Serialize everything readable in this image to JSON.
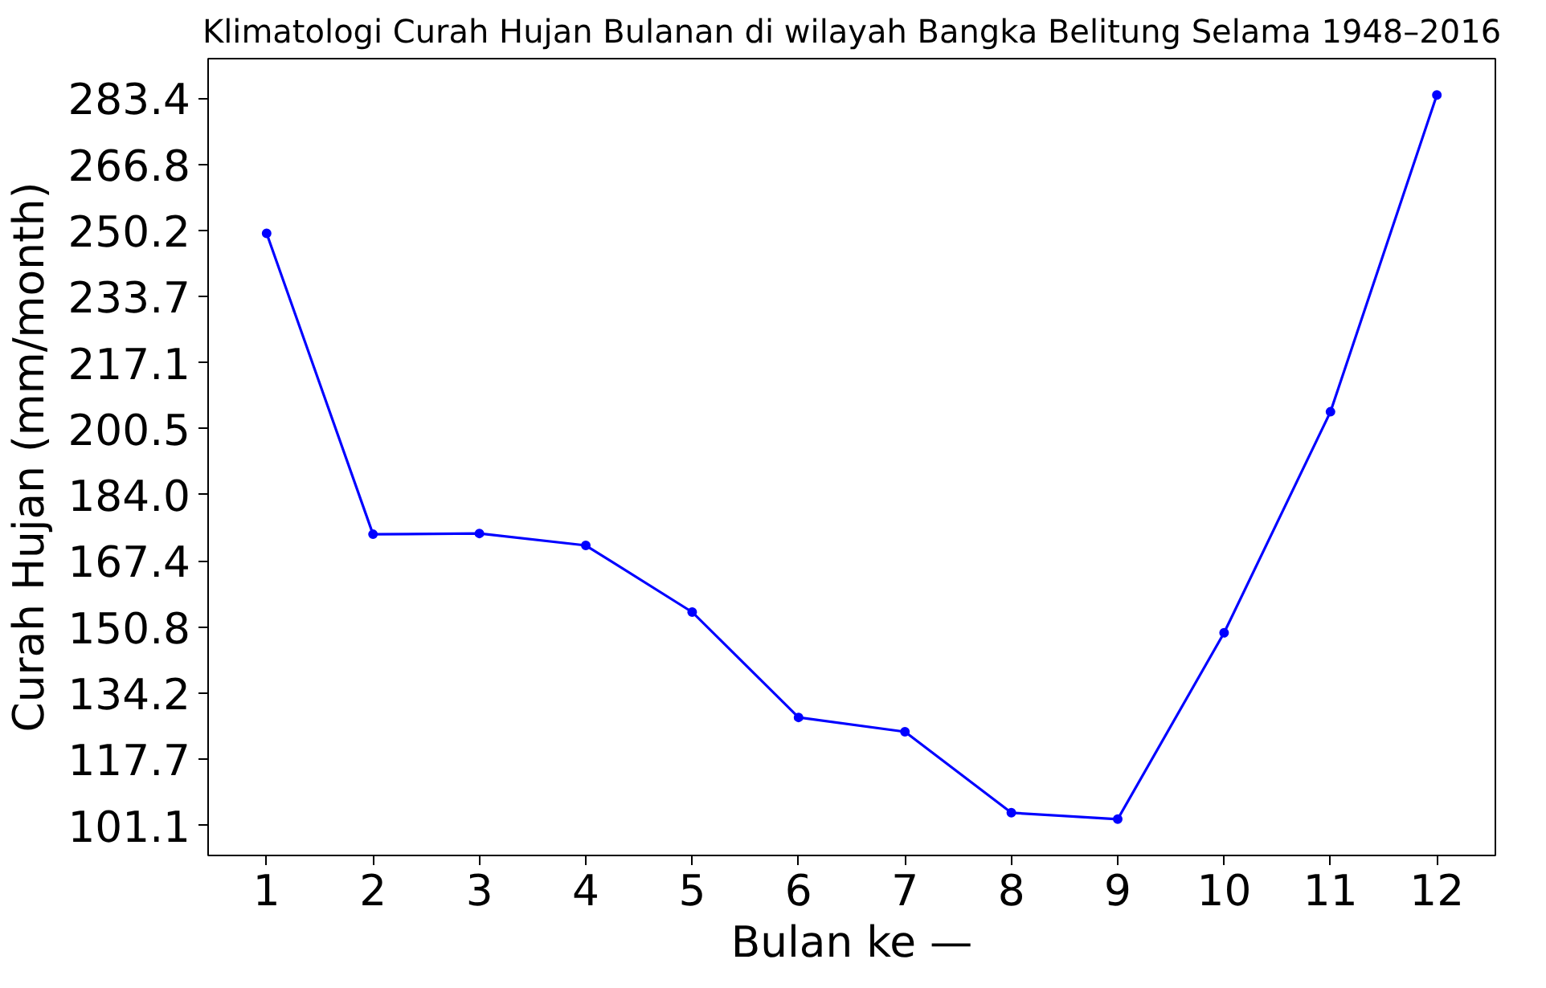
{
  "chart_data": {
    "type": "line",
    "title": "Klimatologi Curah Hujan Bulanan di wilayah Bangka Belitung Selama 1948–2016",
    "xlabel": "Bulan ke —",
    "ylabel": "Curah Hujan (mm/month)",
    "x": [
      1,
      2,
      3,
      4,
      5,
      6,
      7,
      8,
      9,
      10,
      11,
      12
    ],
    "series": [
      {
        "color": "#0000ff",
        "values": [
          249.5,
          174.1,
          174.3,
          171.3,
          154.6,
          128.2,
          124.6,
          104.3,
          102.7,
          149.4,
          204.8,
          284.2
        ]
      }
    ],
    "xlim": [
      0.45,
      12.55
    ],
    "ylim": [
      93.6,
      293.3
    ],
    "xticks": [
      1,
      2,
      3,
      4,
      5,
      6,
      7,
      8,
      9,
      10,
      11,
      12
    ],
    "yticks": [
      101.1,
      117.7,
      134.2,
      150.8,
      167.4,
      {
        "value": 184,
        "label": "184.0"
      },
      200.5,
      217.1,
      233.7,
      250.2,
      266.8,
      283.4
    ],
    "grid": false,
    "marker": "circle",
    "line_style": "solid"
  }
}
